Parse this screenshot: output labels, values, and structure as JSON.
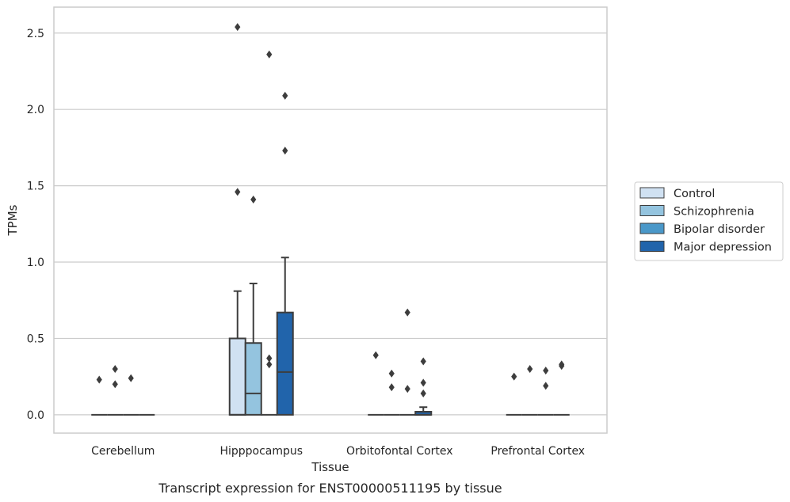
{
  "chart_data": {
    "type": "box",
    "xlabel": "Tissue",
    "ylabel": "TPMs",
    "caption": "Transcript expression for ENST00000511195 by tissue",
    "ylim": [
      -0.12,
      2.67
    ],
    "yticks": [
      "0.0",
      "0.5",
      "1.0",
      "1.5",
      "2.0",
      "2.5"
    ],
    "grid": "horizontal",
    "legend_position": "right",
    "categories": [
      "Cerebellum",
      "Hipppocampus",
      "Orbitofontal Cortex",
      "Prefrontal Cortex"
    ],
    "series": [
      {
        "name": "Control",
        "color": "#d0e1f2",
        "boxes": [
          {
            "q1": 0,
            "median": 0,
            "q3": 0,
            "whisker_low": 0,
            "whisker_high": 0,
            "outliers": [
              0.23
            ]
          },
          {
            "q1": 0,
            "median": 0,
            "q3": 0.5,
            "whisker_low": 0,
            "whisker_high": 0.81,
            "outliers": [
              1.46,
              2.54
            ]
          },
          {
            "q1": 0,
            "median": 0,
            "q3": 0,
            "whisker_low": 0,
            "whisker_high": 0,
            "outliers": [
              0.39
            ]
          },
          {
            "q1": 0,
            "median": 0,
            "q3": 0,
            "whisker_low": 0,
            "whisker_high": 0,
            "outliers": [
              0.25
            ]
          }
        ]
      },
      {
        "name": "Schizophrenia",
        "color": "#94c4df",
        "boxes": [
          {
            "q1": 0,
            "median": 0,
            "q3": 0,
            "whisker_low": 0,
            "whisker_high": 0,
            "outliers": [
              0.2,
              0.3
            ]
          },
          {
            "q1": 0,
            "median": 0.14,
            "q3": 0.47,
            "whisker_low": 0,
            "whisker_high": 0.86,
            "outliers": [
              1.41
            ]
          },
          {
            "q1": 0,
            "median": 0,
            "q3": 0,
            "whisker_low": 0,
            "whisker_high": 0,
            "outliers": [
              0.18,
              0.27
            ]
          },
          {
            "q1": 0,
            "median": 0,
            "q3": 0,
            "whisker_low": 0,
            "whisker_high": 0,
            "outliers": [
              0.3
            ]
          }
        ]
      },
      {
        "name": "Bipolar disorder",
        "color": "#4a98c9",
        "boxes": [
          {
            "q1": 0,
            "median": 0,
            "q3": 0,
            "whisker_low": 0,
            "whisker_high": 0,
            "outliers": [
              0.24
            ]
          },
          {
            "q1": 0,
            "median": 0,
            "q3": 0,
            "whisker_low": 0,
            "whisker_high": 0,
            "outliers": [
              0.33,
              0.37,
              2.36
            ]
          },
          {
            "q1": 0,
            "median": 0,
            "q3": 0,
            "whisker_low": 0,
            "whisker_high": 0,
            "outliers": [
              0.17,
              0.67
            ]
          },
          {
            "q1": 0,
            "median": 0,
            "q3": 0,
            "whisker_low": 0,
            "whisker_high": 0,
            "outliers": [
              0.19,
              0.29
            ]
          }
        ]
      },
      {
        "name": "Major depression",
        "color": "#2164ab",
        "boxes": [
          {
            "q1": 0,
            "median": 0,
            "q3": 0,
            "whisker_low": 0,
            "whisker_high": 0,
            "outliers": []
          },
          {
            "q1": 0,
            "median": 0.28,
            "q3": 0.67,
            "whisker_low": 0,
            "whisker_high": 1.03,
            "outliers": [
              1.73,
              2.09
            ]
          },
          {
            "q1": 0,
            "median": 0,
            "q3": 0.02,
            "whisker_low": 0,
            "whisker_high": 0.05,
            "outliers": [
              0.14,
              0.21,
              0.35
            ]
          },
          {
            "q1": 0,
            "median": 0,
            "q3": 0,
            "whisker_low": 0,
            "whisker_high": 0,
            "outliers": [
              0.32,
              0.33
            ]
          }
        ]
      }
    ]
  }
}
